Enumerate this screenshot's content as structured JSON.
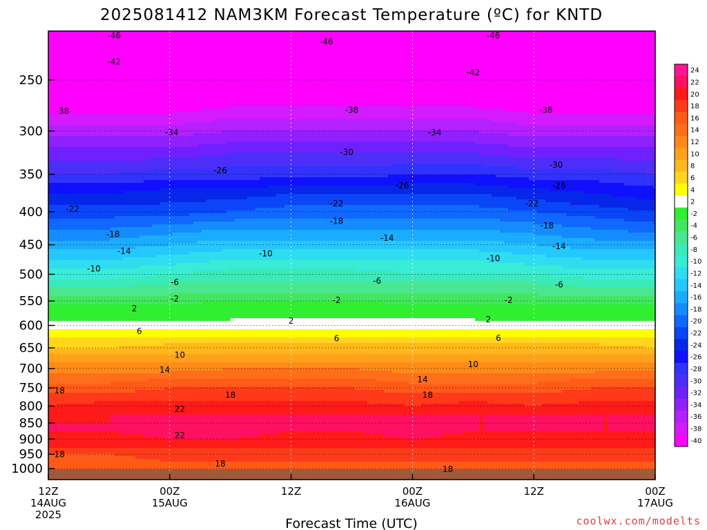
{
  "chart_data": {
    "type": "heatmap",
    "title": "2025081412 NAM3KM Forecast Temperature (ºC) for KNTD",
    "xlabel": "Forecast Time (UTC)",
    "ylabel": "",
    "credit": "coolwx.com/modelts",
    "y_axis": {
      "scale": "log",
      "reversed": true,
      "range_hpa": [
        210,
        1040
      ],
      "ticks": [
        "250",
        "300",
        "350",
        "400",
        "450",
        "500",
        "550",
        "600",
        "650",
        "700",
        "750",
        "800",
        "850",
        "900",
        "950",
        "1000"
      ],
      "tick_values": [
        250,
        300,
        350,
        400,
        450,
        500,
        550,
        600,
        650,
        700,
        750,
        800,
        850,
        900,
        950,
        1000
      ]
    },
    "x_axis": {
      "range_hours": [
        0,
        60
      ],
      "ticks": [
        {
          "hour": 0,
          "line1": "12Z",
          "line2": "14AUG",
          "line3": "2025"
        },
        {
          "hour": 12,
          "line1": "00Z",
          "line2": "15AUG",
          "line3": ""
        },
        {
          "hour": 24,
          "line1": "12Z",
          "line2": "",
          "line3": ""
        },
        {
          "hour": 36,
          "line1": "00Z",
          "line2": "16AUG",
          "line3": ""
        },
        {
          "hour": 48,
          "line1": "12Z",
          "line2": "",
          "line3": ""
        },
        {
          "hour": 60,
          "line1": "00Z",
          "line2": "17AUG",
          "line3": ""
        }
      ]
    },
    "colorbar": {
      "labels": [
        "24",
        "22",
        "20",
        "18",
        "16",
        "14",
        "12",
        "10",
        "8",
        "6",
        "4",
        "2",
        "-2",
        "-4",
        "-6",
        "-8",
        "-10",
        "-12",
        "-14",
        "-16",
        "-18",
        "-20",
        "-22",
        "-24",
        "-26",
        "-28",
        "-30",
        "-32",
        "-34",
        "-36",
        "-38",
        "-40"
      ],
      "colors": [
        "#ff1493",
        "#ff1060",
        "#ff1a1a",
        "#ff3a1a",
        "#ff5a18",
        "#ff6e18",
        "#ff8a18",
        "#ffa21a",
        "#ffb81c",
        "#ffd61c",
        "#ffff00",
        "#ffffff",
        "#30ee30",
        "#44e660",
        "#4ae690",
        "#3aeab8",
        "#38ecd8",
        "#30dcf0",
        "#24c8ff",
        "#1aacff",
        "#148cff",
        "#1068ff",
        "#0a46f8",
        "#0626ea",
        "#1010ff",
        "#3232ff",
        "#4d2ef8",
        "#7020ff",
        "#9020ff",
        "#b420ff",
        "#d41aff",
        "#ff00ff"
      ]
    },
    "levels_hpa": [
      210,
      230,
      250,
      275,
      300,
      325,
      350,
      375,
      400,
      425,
      450,
      475,
      500,
      525,
      550,
      575,
      600,
      625,
      650,
      675,
      700,
      725,
      750,
      775,
      800,
      825,
      850,
      875,
      900,
      925,
      950,
      975,
      1000,
      1040
    ],
    "times_h": [
      0,
      6,
      12,
      18,
      24,
      30,
      36,
      42,
      48,
      54,
      60
    ],
    "temperature_c": [
      [
        -47,
        -47,
        -47,
        -46,
        -46,
        -46,
        -46,
        -46,
        -47,
        -47,
        -47
      ],
      [
        -44,
        -44,
        -44,
        -44,
        -44,
        -44,
        -44,
        -44,
        -44,
        -44,
        -44
      ],
      [
        -42,
        -42,
        -42,
        -41,
        -41,
        -41,
        -41,
        -41,
        -42,
        -42,
        -42
      ],
      [
        -39,
        -39,
        -39,
        -38,
        -38,
        -38,
        -38,
        -38,
        -39,
        -39,
        -39
      ],
      [
        -35,
        -35,
        -35,
        -34,
        -34,
        -34,
        -34,
        -34,
        -35,
        -35,
        -35
      ],
      [
        -31,
        -31,
        -31,
        -30,
        -30,
        -30,
        -30,
        -30,
        -31,
        -31,
        -31
      ],
      [
        -28,
        -28,
        -27,
        -27,
        -27,
        -27,
        -26,
        -26,
        -27,
        -27,
        -28
      ],
      [
        -24,
        -24,
        -23,
        -23,
        -22,
        -22,
        -22,
        -22,
        -23,
        -24,
        -25
      ],
      [
        -21,
        -21,
        -21,
        -20,
        -19,
        -19,
        -19,
        -19,
        -20,
        -21,
        -22
      ],
      [
        -18,
        -18,
        -17,
        -16,
        -16,
        -16,
        -16,
        -16,
        -17,
        -18,
        -19
      ],
      [
        -15,
        -15,
        -14,
        -13,
        -13,
        -13,
        -13,
        -13,
        -14,
        -15,
        -15
      ],
      [
        -12,
        -12,
        -11,
        -10,
        -10,
        -10,
        -10,
        -10,
        -11,
        -12,
        -12
      ],
      [
        -9,
        -9,
        -8,
        -7,
        -7,
        -7,
        -8,
        -8,
        -8,
        -9,
        -9
      ],
      [
        -6,
        -6,
        -5,
        -5,
        -5,
        -5,
        -5,
        -5,
        -5,
        -6,
        -6
      ],
      [
        -3,
        -3,
        -3,
        -2,
        -2,
        -2,
        -3,
        -3,
        -3,
        -3,
        -3
      ],
      [
        0,
        0,
        0,
        1,
        1,
        1,
        1,
        1,
        0,
        0,
        0
      ],
      [
        3,
        3,
        3,
        3,
        3,
        3,
        3,
        3,
        3,
        3,
        3
      ],
      [
        6,
        6,
        6,
        6,
        6,
        6,
        6,
        6,
        6,
        6,
        6
      ],
      [
        8,
        8,
        9,
        9,
        9,
        9,
        9,
        9,
        9,
        9,
        8
      ],
      [
        11,
        11,
        11,
        11,
        11,
        11,
        11,
        11,
        11,
        11,
        11
      ],
      [
        13,
        13,
        13,
        14,
        14,
        14,
        13,
        13,
        13,
        13,
        13
      ],
      [
        15,
        15,
        16,
        16,
        16,
        16,
        15,
        15,
        15,
        16,
        16
      ],
      [
        17,
        17,
        18,
        18,
        18,
        18,
        17,
        17,
        17,
        18,
        18
      ],
      [
        19,
        19,
        19,
        19,
        19,
        19,
        19,
        19,
        19,
        19,
        19
      ],
      [
        20,
        21,
        21,
        21,
        21,
        21,
        20,
        21,
        20,
        21,
        21
      ],
      [
        21,
        22,
        22,
        22,
        22,
        22,
        22,
        22,
        22,
        22,
        22
      ],
      [
        22,
        22,
        23,
        23,
        22,
        22,
        23,
        22,
        22,
        22,
        22
      ],
      [
        22,
        22,
        23,
        23,
        22,
        22,
        23,
        22,
        22,
        22,
        22
      ],
      [
        21,
        21,
        22,
        22,
        21,
        21,
        22,
        21,
        21,
        21,
        21
      ],
      [
        20,
        20,
        20,
        20,
        20,
        20,
        20,
        20,
        20,
        20,
        20
      ],
      [
        18,
        18,
        19,
        19,
        19,
        19,
        19,
        19,
        19,
        19,
        19
      ],
      [
        17,
        17,
        18,
        18,
        18,
        18,
        18,
        18,
        18,
        18,
        18
      ],
      [
        17,
        17,
        17,
        17,
        17,
        17,
        17,
        17,
        17,
        17,
        17
      ],
      [
        17,
        17,
        17,
        17,
        17,
        17,
        17,
        17,
        17,
        17,
        17
      ]
    ],
    "contour_labels": [
      {
        "t": 6.5,
        "p": 213,
        "text": "-46"
      },
      {
        "t": 27.5,
        "p": 218,
        "text": "-46"
      },
      {
        "t": 44,
        "p": 213,
        "text": "-46"
      },
      {
        "t": 6.5,
        "p": 234,
        "text": "-42"
      },
      {
        "t": 42,
        "p": 243,
        "text": "-42"
      },
      {
        "t": 1.4,
        "p": 279,
        "text": "-38"
      },
      {
        "t": 30,
        "p": 278,
        "text": "-38"
      },
      {
        "t": 49.2,
        "p": 278,
        "text": "-38"
      },
      {
        "t": 12.2,
        "p": 301,
        "text": "-34"
      },
      {
        "t": 38.2,
        "p": 301,
        "text": "-34"
      },
      {
        "t": 29.5,
        "p": 323,
        "text": "-30"
      },
      {
        "t": 50.2,
        "p": 338,
        "text": "-30"
      },
      {
        "t": 17,
        "p": 345,
        "text": "-26"
      },
      {
        "t": 35,
        "p": 364,
        "text": "-26"
      },
      {
        "t": 50.5,
        "p": 364,
        "text": "-26"
      },
      {
        "t": 2.4,
        "p": 396,
        "text": "-22"
      },
      {
        "t": 28.5,
        "p": 388,
        "text": "-22"
      },
      {
        "t": 47.8,
        "p": 388,
        "text": "-22"
      },
      {
        "t": 6.4,
        "p": 433,
        "text": "-18"
      },
      {
        "t": 28.5,
        "p": 413,
        "text": "-18"
      },
      {
        "t": 49.3,
        "p": 420,
        "text": "-18"
      },
      {
        "t": 7.5,
        "p": 460,
        "text": "-14"
      },
      {
        "t": 33.5,
        "p": 439,
        "text": "-14"
      },
      {
        "t": 50.5,
        "p": 452,
        "text": "-14"
      },
      {
        "t": 4.5,
        "p": 490,
        "text": "-10"
      },
      {
        "t": 21.5,
        "p": 464,
        "text": "-10"
      },
      {
        "t": 44,
        "p": 472,
        "text": "-10"
      },
      {
        "t": 12.5,
        "p": 514,
        "text": "-6"
      },
      {
        "t": 32.5,
        "p": 511,
        "text": "-6"
      },
      {
        "t": 50.5,
        "p": 518,
        "text": "-6"
      },
      {
        "t": 12.5,
        "p": 545,
        "text": "-2"
      },
      {
        "t": 28.5,
        "p": 548,
        "text": "-2"
      },
      {
        "t": 45.5,
        "p": 548,
        "text": "-2"
      },
      {
        "t": 8.5,
        "p": 564,
        "text": "2"
      },
      {
        "t": 24,
        "p": 590,
        "text": "2"
      },
      {
        "t": 43.5,
        "p": 587,
        "text": "2"
      },
      {
        "t": 9,
        "p": 612,
        "text": "6"
      },
      {
        "t": 28.5,
        "p": 628,
        "text": "6"
      },
      {
        "t": 44.5,
        "p": 627,
        "text": "6"
      },
      {
        "t": 13,
        "p": 666,
        "text": "10"
      },
      {
        "t": 42,
        "p": 689,
        "text": "10"
      },
      {
        "t": 11.5,
        "p": 702,
        "text": "14"
      },
      {
        "t": 37,
        "p": 727,
        "text": "14"
      },
      {
        "t": 1.1,
        "p": 756,
        "text": "18"
      },
      {
        "t": 18,
        "p": 768,
        "text": "18"
      },
      {
        "t": 37.5,
        "p": 768,
        "text": "18"
      },
      {
        "t": 13,
        "p": 808,
        "text": "22"
      },
      {
        "t": 13,
        "p": 887,
        "text": "22"
      },
      {
        "t": 1.1,
        "p": 950,
        "text": "18"
      },
      {
        "t": 17,
        "p": 982,
        "text": "18"
      },
      {
        "t": 39.5,
        "p": 1001,
        "text": "18"
      }
    ]
  }
}
